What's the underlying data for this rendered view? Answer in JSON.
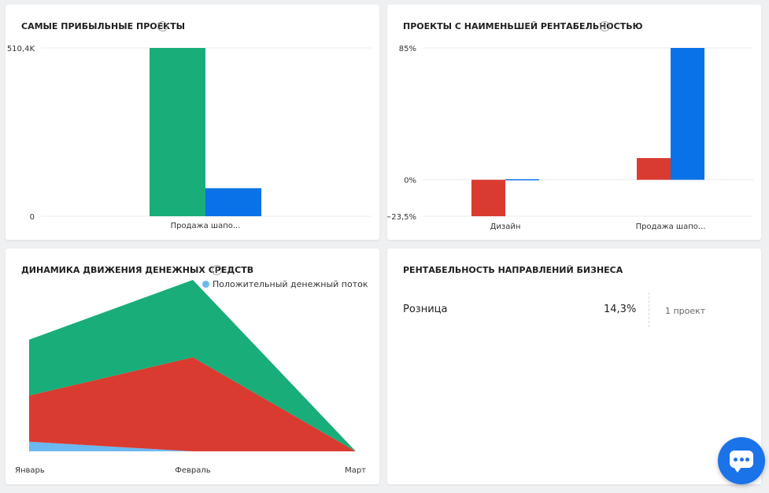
{
  "cards": {
    "top_profitable": {
      "title": "Самые прибыльные проекты"
    },
    "least_profitable": {
      "title": "Проекты с наименьшей рентабельностью"
    },
    "cashflow": {
      "title": "Динамика движения денежных средств",
      "legend_label": "Положительный денежный поток"
    },
    "business": {
      "title": "Рентабельность направлений бизнеса",
      "rows": [
        {
          "name": "Розница",
          "value": "14,3%",
          "count": "1 проект"
        }
      ]
    }
  },
  "colors": {
    "green": "#19ad79",
    "blue": "#0a72e8",
    "red": "#d93b30",
    "lightblue": "#6bb8f2",
    "grid": "#ececec",
    "axis_text": "#333333"
  },
  "icons": {
    "info": "info-icon",
    "chat": "chat-icon"
  },
  "chart_data": [
    {
      "type": "bar",
      "title": "Самые прибыльные проекты",
      "categories": [
        "Продажа шапо..."
      ],
      "series": [
        {
          "color": "#19ad79",
          "values": [
            510.4
          ]
        },
        {
          "color": "#0a72e8",
          "values": [
            85
          ]
        }
      ],
      "yticks": [
        {
          "value": 0,
          "label": "0"
        },
        {
          "value": 510.4,
          "label": "510,4K"
        }
      ],
      "ylim": [
        0,
        510.4
      ],
      "grid": true
    },
    {
      "type": "bar",
      "title": "Проекты с наименьшей рентабельностью",
      "categories": [
        "Дизайн",
        "Продажа шапо..."
      ],
      "series": [
        {
          "color": "#d93b30",
          "values": [
            -23.5,
            14
          ]
        },
        {
          "color": "#0a72e8",
          "values": [
            0.4,
            85
          ]
        }
      ],
      "yticks": [
        {
          "value": 85,
          "label": "85%"
        },
        {
          "value": 0,
          "label": "0%"
        },
        {
          "value": -23.5,
          "label": "−23,5%"
        }
      ],
      "ylim": [
        -23.5,
        85
      ],
      "grid": true
    },
    {
      "type": "area",
      "title": "Динамика движения денежных средств",
      "categories": [
        "Январь",
        "Февраль",
        "Март"
      ],
      "stacked": true,
      "series": [
        {
          "name": "Положительный денежный поток",
          "color": "#6bb8f2",
          "values": [
            12,
            0,
            0
          ]
        },
        {
          "color": "#d93b30",
          "values": [
            58,
            118,
            0
          ]
        },
        {
          "color": "#19ad79",
          "values": [
            70,
            97,
            0
          ]
        }
      ],
      "ylim": [
        0,
        215
      ],
      "legend": "top"
    }
  ]
}
